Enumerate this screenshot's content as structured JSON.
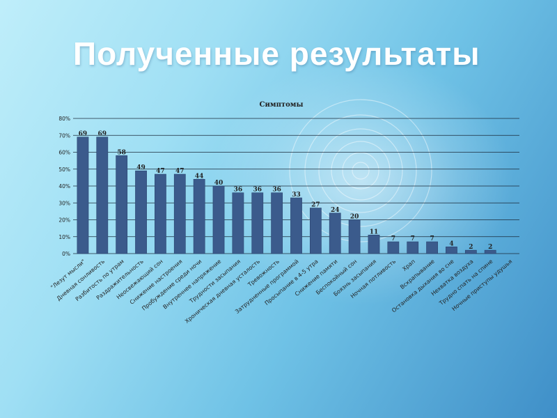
{
  "slide": {
    "title": "Полученные результаты"
  },
  "chart_data": {
    "type": "bar",
    "title": "Симптомы",
    "xlabel": "",
    "ylabel": "",
    "ylim": [
      0,
      80
    ],
    "yticks": [
      "0%",
      "10%",
      "20%",
      "30%",
      "40%",
      "50%",
      "60%",
      "70%",
      "80%"
    ],
    "grid": true,
    "legend": "none",
    "bar_color": "#3b5b8c",
    "categories": [
      "\"Лезут мысли\"",
      "Дневная сонливость",
      "Разбитость по утрам",
      "Раздражительность",
      "Неосвежающий сон",
      "Снижение настроения",
      "Пробуждение среди ночи",
      "Внутреннее напряжение",
      "Трудности засыпания",
      "Хроническая дневная усталость",
      "Тревожность",
      "Затрудненные программой",
      "Просыпание в 4-5 утра",
      "Снижение памяти",
      "Беспокойный сон",
      "Боязнь засыпания",
      "Ночная потливость",
      "Храп",
      "Вскрапывание",
      "Остановка дыхания во сне",
      "Нехватка воздуха",
      "Трудно спать на спине",
      "Ночные приступы удушья"
    ],
    "values": [
      69,
      69,
      58,
      49,
      47,
      47,
      44,
      40,
      36,
      36,
      36,
      33,
      27,
      24,
      20,
      11,
      7,
      7,
      7,
      4,
      2,
      2,
      0
    ],
    "data_labels": [
      "69",
      "69",
      "58",
      "49",
      "47",
      "47",
      "44",
      "40",
      "36",
      "36",
      "36",
      "33",
      "27",
      "24",
      "20",
      "11",
      "7",
      "7",
      "7",
      "4",
      "2",
      "2",
      ""
    ]
  }
}
